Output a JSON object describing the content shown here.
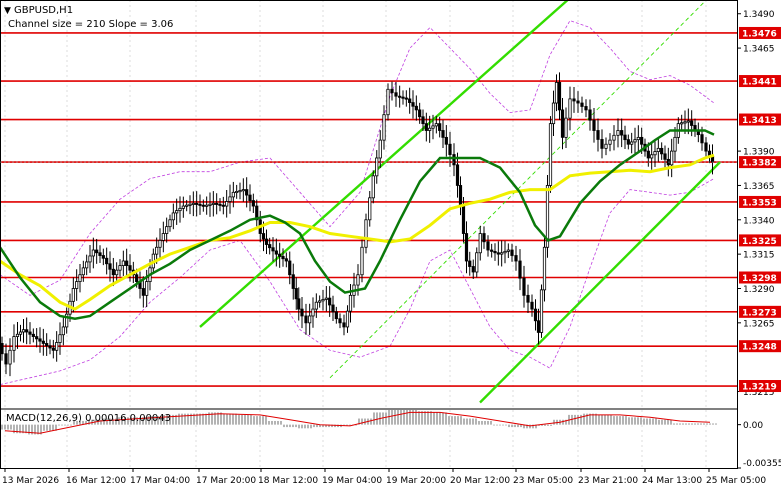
{
  "header": {
    "symbol": "GBPUSD,H1",
    "channel_info": "Channel size = 210 Slope = 3.06"
  },
  "macd": {
    "label": "MACD(12,26,9) 0.00016 0.00043"
  },
  "colors": {
    "level_line": "#e00000",
    "level_label_bg": "#e00000",
    "channel": "#33dd00",
    "ma_fast": "#0a7a0a",
    "ma_slow": "#f0f000",
    "bollinger": "#c040e0",
    "candle": "#000000",
    "macd_hist": "#b4b4b4",
    "macd_signal": "#e00000",
    "grid": "#dcdcdc"
  },
  "chart_data": {
    "type": "line",
    "title": "GBPUSD,H1",
    "subtitle": "Channel size = 210 Slope = 3.06",
    "ylim": [
      1.3203,
      1.35
    ],
    "y_ticks": [
      "1.3490",
      "1.3465",
      "1.3390",
      "1.3365",
      "1.3340",
      "1.3315",
      "1.3290",
      "1.3265",
      "1.3215"
    ],
    "x_ticks": [
      "13 Mar 2026",
      "16 Mar 12:00",
      "17 Mar 04:00",
      "17 Mar 20:00",
      "18 Mar 12:00",
      "19 Mar 04:00",
      "19 Mar 20:00",
      "20 Mar 12:00",
      "23 Mar 05:00",
      "23 Mar 21:00",
      "24 Mar 13:00",
      "25 Mar 05:00"
    ],
    "levels": [
      "1.3476",
      "1.3441",
      "1.3413",
      "1.3382",
      "1.3353",
      "1.3325",
      "1.3298",
      "1.3273",
      "1.3248",
      "1.3219"
    ],
    "price": [
      [
        0,
        1.325
      ],
      [
        8,
        1.3235
      ],
      [
        16,
        1.3255
      ],
      [
        25,
        1.326
      ],
      [
        35,
        1.3255
      ],
      [
        45,
        1.325
      ],
      [
        55,
        1.3245
      ],
      [
        65,
        1.3262
      ],
      [
        75,
        1.329
      ],
      [
        85,
        1.3305
      ],
      [
        95,
        1.3318
      ],
      [
        105,
        1.3312
      ],
      [
        115,
        1.33
      ],
      [
        125,
        1.331
      ],
      [
        135,
        1.33
      ],
      [
        145,
        1.3285
      ],
      [
        155,
        1.3315
      ],
      [
        165,
        1.333
      ],
      [
        175,
        1.3345
      ],
      [
        185,
        1.335
      ],
      [
        195,
        1.3352
      ],
      [
        205,
        1.335
      ],
      [
        215,
        1.3352
      ],
      [
        225,
        1.335
      ],
      [
        235,
        1.336
      ],
      [
        245,
        1.3362
      ],
      [
        255,
        1.335
      ],
      [
        262,
        1.333
      ],
      [
        268,
        1.3322
      ],
      [
        278,
        1.3315
      ],
      [
        288,
        1.331
      ],
      [
        295,
        1.329
      ],
      [
        300,
        1.3275
      ],
      [
        308,
        1.3265
      ],
      [
        318,
        1.328
      ],
      [
        328,
        1.3283
      ],
      [
        338,
        1.3268
      ],
      [
        346,
        1.3262
      ],
      [
        352,
        1.3285
      ],
      [
        360,
        1.33
      ],
      [
        368,
        1.334
      ],
      [
        375,
        1.3372
      ],
      [
        382,
        1.3398
      ],
      [
        390,
        1.3435
      ],
      [
        398,
        1.343
      ],
      [
        408,
        1.3428
      ],
      [
        418,
        1.342
      ],
      [
        428,
        1.3405
      ],
      [
        438,
        1.341
      ],
      [
        448,
        1.3395
      ],
      [
        456,
        1.338
      ],
      [
        462,
        1.335
      ],
      [
        468,
        1.331
      ],
      [
        475,
        1.3302
      ],
      [
        482,
        1.333
      ],
      [
        490,
        1.3318
      ],
      [
        500,
        1.3315
      ],
      [
        510,
        1.3318
      ],
      [
        518,
        1.331
      ],
      [
        526,
        1.3285
      ],
      [
        534,
        1.3275
      ],
      [
        540,
        1.3258
      ],
      [
        546,
        1.332
      ],
      [
        552,
        1.341
      ],
      [
        558,
        1.344
      ],
      [
        564,
        1.34
      ],
      [
        572,
        1.3428
      ],
      [
        580,
        1.3425
      ],
      [
        588,
        1.342
      ],
      [
        596,
        1.3405
      ],
      [
        604,
        1.3392
      ],
      [
        612,
        1.3398
      ],
      [
        620,
        1.3405
      ],
      [
        630,
        1.3395
      ],
      [
        640,
        1.34
      ],
      [
        650,
        1.3385
      ],
      [
        660,
        1.3392
      ],
      [
        670,
        1.338
      ],
      [
        680,
        1.341
      ],
      [
        690,
        1.3412
      ],
      [
        700,
        1.3402
      ],
      [
        708,
        1.339
      ],
      [
        714,
        1.3382
      ]
    ],
    "series": [
      {
        "points": [
          [
            0,
            1.331
          ],
          [
            20,
            1.33
          ],
          [
            40,
            1.3292
          ],
          [
            60,
            1.328
          ],
          [
            75,
            1.3275
          ],
          [
            90,
            1.3282
          ],
          [
            110,
            1.3292
          ],
          [
            130,
            1.33
          ],
          [
            150,
            1.3308
          ],
          [
            170,
            1.3315
          ],
          [
            190,
            1.332
          ],
          [
            210,
            1.3325
          ],
          [
            230,
            1.3327
          ],
          [
            250,
            1.3332
          ],
          [
            270,
            1.3338
          ],
          [
            290,
            1.3338
          ],
          [
            310,
            1.3335
          ],
          [
            330,
            1.333
          ],
          [
            350,
            1.3328
          ],
          [
            370,
            1.3326
          ],
          [
            390,
            1.3324
          ],
          [
            410,
            1.3326
          ],
          [
            430,
            1.3336
          ],
          [
            450,
            1.3348
          ],
          [
            470,
            1.3352
          ],
          [
            490,
            1.3355
          ],
          [
            510,
            1.336
          ],
          [
            530,
            1.3362
          ],
          [
            550,
            1.3362
          ],
          [
            570,
            1.3372
          ],
          [
            590,
            1.3374
          ],
          [
            610,
            1.3375
          ],
          [
            630,
            1.3376
          ],
          [
            650,
            1.3375
          ],
          [
            670,
            1.3378
          ],
          [
            690,
            1.338
          ],
          [
            705,
            1.3385
          ],
          [
            714,
            1.3387
          ]
        ]
      },
      {
        "points": [
          [
            0,
            1.332
          ],
          [
            20,
            1.3298
          ],
          [
            40,
            1.328
          ],
          [
            60,
            1.327
          ],
          [
            75,
            1.3268
          ],
          [
            90,
            1.327
          ],
          [
            110,
            1.328
          ],
          [
            130,
            1.329
          ],
          [
            150,
            1.33
          ],
          [
            170,
            1.3308
          ],
          [
            190,
            1.3318
          ],
          [
            210,
            1.3325
          ],
          [
            230,
            1.3332
          ],
          [
            250,
            1.334
          ],
          [
            270,
            1.3343
          ],
          [
            285,
            1.3338
          ],
          [
            300,
            1.333
          ],
          [
            315,
            1.331
          ],
          [
            330,
            1.3295
          ],
          [
            345,
            1.3287
          ],
          [
            365,
            1.329
          ],
          [
            380,
            1.331
          ],
          [
            400,
            1.334
          ],
          [
            420,
            1.3368
          ],
          [
            440,
            1.3385
          ],
          [
            460,
            1.3385
          ],
          [
            480,
            1.3385
          ],
          [
            500,
            1.3378
          ],
          [
            520,
            1.336
          ],
          [
            535,
            1.3336
          ],
          [
            548,
            1.3325
          ],
          [
            560,
            1.3328
          ],
          [
            580,
            1.3352
          ],
          [
            600,
            1.3368
          ],
          [
            620,
            1.338
          ],
          [
            640,
            1.339
          ],
          [
            655,
            1.3398
          ],
          [
            670,
            1.3405
          ],
          [
            690,
            1.3405
          ],
          [
            705,
            1.3405
          ],
          [
            714,
            1.3402
          ]
        ]
      }
    ],
    "bollinger": {
      "upper": [
        [
          0,
          1.33
        ],
        [
          30,
          1.3285
        ],
        [
          60,
          1.3296
        ],
        [
          90,
          1.333
        ],
        [
          120,
          1.3355
        ],
        [
          150,
          1.337
        ],
        [
          180,
          1.3375
        ],
        [
          210,
          1.3375
        ],
        [
          240,
          1.3382
        ],
        [
          270,
          1.3385
        ],
        [
          300,
          1.336
        ],
        [
          330,
          1.3335
        ],
        [
          360,
          1.336
        ],
        [
          390,
          1.343
        ],
        [
          410,
          1.3465
        ],
        [
          430,
          1.348
        ],
        [
          450,
          1.3465
        ],
        [
          470,
          1.345
        ],
        [
          490,
          1.3432
        ],
        [
          510,
          1.3418
        ],
        [
          530,
          1.342
        ],
        [
          550,
          1.346
        ],
        [
          570,
          1.3485
        ],
        [
          590,
          1.348
        ],
        [
          610,
          1.3465
        ],
        [
          630,
          1.3448
        ],
        [
          650,
          1.3442
        ],
        [
          670,
          1.3445
        ],
        [
          690,
          1.3438
        ],
        [
          714,
          1.3425
        ]
      ],
      "lower": [
        [
          0,
          1.322
        ],
        [
          30,
          1.3225
        ],
        [
          60,
          1.323
        ],
        [
          90,
          1.3238
        ],
        [
          120,
          1.3255
        ],
        [
          150,
          1.328
        ],
        [
          180,
          1.3298
        ],
        [
          210,
          1.3318
        ],
        [
          240,
          1.3325
        ],
        [
          270,
          1.3295
        ],
        [
          300,
          1.326
        ],
        [
          330,
          1.3245
        ],
        [
          360,
          1.324
        ],
        [
          390,
          1.3248
        ],
        [
          410,
          1.3275
        ],
        [
          430,
          1.331
        ],
        [
          450,
          1.3318
        ],
        [
          470,
          1.329
        ],
        [
          490,
          1.3262
        ],
        [
          510,
          1.3245
        ],
        [
          530,
          1.324
        ],
        [
          550,
          1.3232
        ],
        [
          570,
          1.3262
        ],
        [
          590,
          1.3305
        ],
        [
          610,
          1.3345
        ],
        [
          630,
          1.3362
        ],
        [
          650,
          1.336
        ],
        [
          670,
          1.3358
        ],
        [
          690,
          1.336
        ],
        [
          714,
          1.337
        ]
      ]
    },
    "channel": {
      "upper": [
        [
          200,
          1.3262
        ],
        [
          580,
          1.3508
        ]
      ],
      "middle": [
        [
          330,
          1.3225
        ],
        [
          720,
          1.351
        ]
      ],
      "lower": [
        [
          480,
          1.3207
        ],
        [
          720,
          1.3382
        ]
      ]
    },
    "macd_scale": {
      "min": -0.00355,
      "max": 0.0012,
      "y_ticks": [
        "0.00",
        "-0.00355"
      ]
    },
    "macd_hist": [
      [
        5,
        -0.0004
      ],
      [
        20,
        -0.0007
      ],
      [
        35,
        -0.0008
      ],
      [
        50,
        -0.0005
      ],
      [
        65,
        0.0
      ],
      [
        80,
        0.0003
      ],
      [
        95,
        0.0004
      ],
      [
        110,
        0.0005
      ],
      [
        125,
        0.0006
      ],
      [
        140,
        0.0006
      ],
      [
        155,
        0.0007
      ],
      [
        170,
        0.0008
      ],
      [
        185,
        0.0009
      ],
      [
        200,
        0.0009
      ],
      [
        215,
        0.001
      ],
      [
        230,
        0.0009
      ],
      [
        245,
        0.0008
      ],
      [
        260,
        0.0007
      ],
      [
        275,
        0.0003
      ],
      [
        290,
        -0.0002
      ],
      [
        305,
        -0.0003
      ],
      [
        320,
        -0.0002
      ],
      [
        335,
        -0.0002
      ],
      [
        350,
        0.0
      ],
      [
        365,
        0.0005
      ],
      [
        380,
        0.001
      ],
      [
        395,
        0.0012
      ],
      [
        410,
        0.0012
      ],
      [
        425,
        0.0011
      ],
      [
        440,
        0.001
      ],
      [
        455,
        0.0007
      ],
      [
        470,
        0.0005
      ],
      [
        485,
        0.0003
      ],
      [
        500,
        0.0
      ],
      [
        515,
        -0.0002
      ],
      [
        530,
        -0.0003
      ],
      [
        545,
        -0.0001
      ],
      [
        560,
        0.0004
      ],
      [
        575,
        0.0008
      ],
      [
        590,
        0.0009
      ],
      [
        605,
        0.0008
      ],
      [
        620,
        0.0007
      ],
      [
        635,
        0.0006
      ],
      [
        650,
        0.0005
      ],
      [
        665,
        0.0004
      ],
      [
        680,
        0.0001
      ],
      [
        695,
        0.0001
      ],
      [
        710,
        0.0001
      ]
    ],
    "macd_signal": [
      [
        5,
        -0.0005
      ],
      [
        40,
        -0.0007
      ],
      [
        70,
        -0.0002
      ],
      [
        100,
        0.0003
      ],
      [
        140,
        0.0005
      ],
      [
        180,
        0.0007
      ],
      [
        220,
        0.0009
      ],
      [
        260,
        0.0008
      ],
      [
        290,
        0.0004
      ],
      [
        320,
        0.0
      ],
      [
        350,
        -0.0001
      ],
      [
        380,
        0.0005
      ],
      [
        410,
        0.001
      ],
      [
        440,
        0.001
      ],
      [
        470,
        0.0007
      ],
      [
        500,
        0.0003
      ],
      [
        530,
        -0.0001
      ],
      [
        560,
        0.0002
      ],
      [
        590,
        0.0008
      ],
      [
        620,
        0.0008
      ],
      [
        650,
        0.0006
      ],
      [
        680,
        0.0003
      ],
      [
        710,
        0.0002
      ]
    ]
  }
}
